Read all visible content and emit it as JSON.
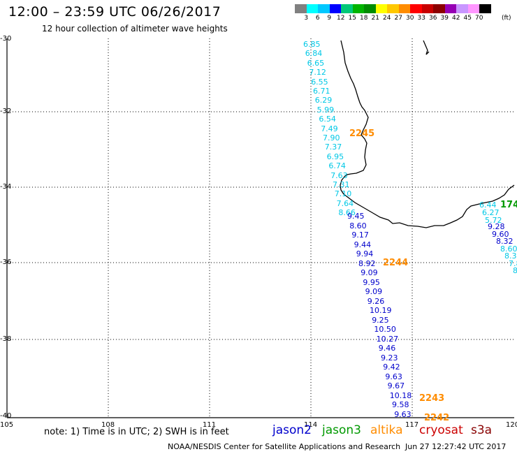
{
  "title": "12:00 – 23:59 UTC 06/26/2017",
  "subtitle": "12 hour collection of altimeter wave heights",
  "scale": {
    "labels": [
      "3",
      "6",
      "9",
      "12",
      "15",
      "18",
      "21",
      "24",
      "27",
      "30",
      "33",
      "36",
      "39",
      "42",
      "45",
      "70"
    ],
    "unit": "(ft)",
    "colors": [
      "#808080",
      "#00ffff",
      "#00c8ff",
      "#0000ff",
      "#00c878",
      "#00b400",
      "#008c00",
      "#ffff00",
      "#ffc800",
      "#ff8c00",
      "#ff0000",
      "#c80000",
      "#8c0000",
      "#9600b4",
      "#c896ff",
      "#ff96ff",
      "#000000"
    ]
  },
  "axes": {
    "lat_labels": [
      "-30",
      "-32",
      "-34",
      "-36",
      "-38",
      "-40"
    ],
    "lon_labels": [
      "105",
      "108",
      "111",
      "114",
      "117",
      "120"
    ]
  },
  "legend": {
    "note": "note:  1) Time is in UTC;  2) SWH is in feet",
    "satellites": [
      {
        "name": "jason2",
        "color": "#0000cc"
      },
      {
        "name": "jason3",
        "color": "#009900"
      },
      {
        "name": "altika",
        "color": "#ff8c00"
      },
      {
        "name": "cryosat",
        "color": "#cc0000"
      },
      {
        "name": "s3a",
        "color": "#880000"
      }
    ]
  },
  "credit": "NOAA/NESDIS Center for Satellite Applications and Research",
  "timestamp": "Jun 27 12:27:42 UTC 2017",
  "main_track": {
    "light_values": [
      "6.85",
      "6.84",
      "6.65",
      "7.12",
      "6.55",
      "6.71",
      "6.29",
      "5.99",
      "6.54",
      "7.49",
      "7.90",
      "7.37",
      "6.95",
      "6.74",
      "7.63",
      "7.31",
      "7.10",
      "7.64",
      "8.66"
    ],
    "dark_values": [
      "9.45",
      "8.60",
      "9.17",
      "9.44",
      "9.94",
      "8.92",
      "9.09",
      "9.95",
      "9.09",
      "9.26",
      "10.19",
      "9.25",
      "10.50",
      "10.27",
      "9.46",
      "9.23",
      "9.42",
      "9.63",
      "9.67",
      "10.18",
      "9.58",
      "9.63"
    ]
  },
  "east_track": {
    "light_values": [
      "6.44",
      "6.27",
      "5.72"
    ],
    "dark_values": [
      "9.28",
      "9.60",
      "8.32",
      "8.60",
      "8.3",
      "7.8",
      "8"
    ]
  },
  "time_labels": [
    "2245",
    "2244",
    "2243",
    "2242",
    "174"
  ],
  "time_label_colors": [
    "#ff8c00",
    "#ff8c00",
    "#ff8c00",
    "#ff8c00",
    "#009900"
  ]
}
